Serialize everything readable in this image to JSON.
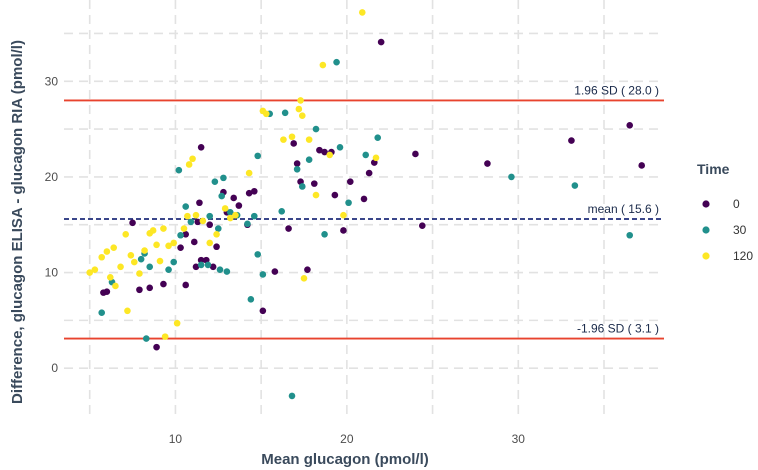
{
  "chart_data": {
    "type": "scatter",
    "title": "",
    "xlabel": "Mean glucagon (pmol/l)",
    "ylabel": "Difference, glucagon ELISA - glucagon RIA (pmol/l)",
    "xlim": [
      3.5,
      38.5
    ],
    "ylim": [
      -5,
      38.5
    ],
    "x_ticks": [
      10,
      20,
      30
    ],
    "y_ticks": [
      0,
      10,
      20,
      30
    ],
    "grid": "dashed",
    "legend": {
      "title": "Time",
      "position": "right"
    },
    "colors": {
      "0": "#440154",
      "30": "#21908C",
      "120": "#FDE725",
      "limit_line": "#E8432E",
      "mean_line": "#1F2D7A",
      "grid": "#e2e2e2"
    },
    "reference_lines": [
      {
        "label": "1.96 SD ( 28.0 )",
        "y": 28.0,
        "style": "solid",
        "color": "#E8432E"
      },
      {
        "label": "mean ( 15.6 )",
        "y": 15.6,
        "style": "dashed",
        "color": "#1F2D7A"
      },
      {
        "label": "-1.96 SD ( 3.1 )",
        "y": 3.1,
        "style": "solid",
        "color": "#E8432E"
      }
    ],
    "series": [
      {
        "name": "0",
        "color": "#440154",
        "points": [
          [
            5.8,
            7.9
          ],
          [
            6.0,
            8.0
          ],
          [
            7.5,
            15.2
          ],
          [
            7.9,
            8.2
          ],
          [
            8.5,
            8.4
          ],
          [
            8.9,
            2.2
          ],
          [
            9.3,
            8.8
          ],
          [
            10.3,
            12.6
          ],
          [
            10.6,
            8.7
          ],
          [
            10.6,
            14.0
          ],
          [
            11.1,
            13.2
          ],
          [
            11.2,
            10.6
          ],
          [
            11.3,
            15.3
          ],
          [
            11.4,
            17.3
          ],
          [
            11.5,
            23.1
          ],
          [
            11.5,
            11.3
          ],
          [
            11.8,
            11.3
          ],
          [
            12.0,
            15.0
          ],
          [
            12.2,
            10.6
          ],
          [
            12.4,
            12.7
          ],
          [
            12.8,
            18.4
          ],
          [
            13.0,
            16.3
          ],
          [
            13.4,
            17.8
          ],
          [
            13.7,
            17.0
          ],
          [
            14.2,
            15.0
          ],
          [
            14.3,
            18.3
          ],
          [
            14.6,
            18.5
          ],
          [
            15.1,
            6.0
          ],
          [
            15.8,
            10.1
          ],
          [
            16.6,
            14.6
          ],
          [
            16.9,
            23.5
          ],
          [
            17.1,
            21.4
          ],
          [
            17.3,
            19.5
          ],
          [
            17.7,
            10.3
          ],
          [
            18.1,
            19.3
          ],
          [
            18.4,
            22.8
          ],
          [
            18.7,
            22.6
          ],
          [
            19.1,
            22.6
          ],
          [
            19.3,
            18.1
          ],
          [
            19.8,
            14.4
          ],
          [
            20.2,
            19.5
          ],
          [
            21.0,
            17.7
          ],
          [
            21.3,
            20.4
          ],
          [
            21.6,
            21.5
          ],
          [
            22.0,
            34.1
          ],
          [
            24.0,
            22.4
          ],
          [
            24.4,
            14.9
          ],
          [
            28.2,
            21.4
          ],
          [
            33.1,
            23.8
          ],
          [
            36.5,
            25.4
          ],
          [
            37.2,
            21.2
          ]
        ]
      },
      {
        "name": "30",
        "color": "#21908C",
        "points": [
          [
            5.7,
            5.8
          ],
          [
            6.3,
            9.0
          ],
          [
            8.0,
            11.4
          ],
          [
            8.2,
            12.0
          ],
          [
            8.3,
            3.1
          ],
          [
            8.5,
            10.6
          ],
          [
            9.6,
            10.3
          ],
          [
            9.9,
            11.1
          ],
          [
            10.2,
            20.7
          ],
          [
            10.3,
            13.9
          ],
          [
            10.6,
            16.9
          ],
          [
            10.9,
            15.3
          ],
          [
            11.5,
            10.8
          ],
          [
            11.9,
            10.8
          ],
          [
            12.0,
            15.9
          ],
          [
            12.3,
            19.5
          ],
          [
            12.5,
            14.6
          ],
          [
            12.6,
            10.3
          ],
          [
            12.7,
            18.0
          ],
          [
            12.8,
            19.9
          ],
          [
            13.0,
            10.1
          ],
          [
            13.2,
            16.3
          ],
          [
            13.6,
            16.0
          ],
          [
            14.2,
            15.1
          ],
          [
            14.4,
            7.2
          ],
          [
            14.6,
            15.9
          ],
          [
            14.8,
            11.9
          ],
          [
            14.8,
            22.2
          ],
          [
            15.1,
            9.8
          ],
          [
            15.5,
            26.6
          ],
          [
            16.2,
            16.4
          ],
          [
            16.4,
            26.7
          ],
          [
            16.8,
            -2.9
          ],
          [
            17.1,
            20.8
          ],
          [
            17.4,
            19.0
          ],
          [
            17.8,
            21.8
          ],
          [
            18.2,
            25.0
          ],
          [
            18.7,
            14.0
          ],
          [
            19.4,
            32.0
          ],
          [
            19.6,
            23.1
          ],
          [
            20.1,
            17.3
          ],
          [
            21.1,
            22.3
          ],
          [
            21.8,
            24.1
          ],
          [
            29.6,
            20.0
          ],
          [
            33.3,
            19.1
          ],
          [
            36.5,
            13.9
          ]
        ]
      },
      {
        "name": "120",
        "color": "#FDE725",
        "points": [
          [
            5.0,
            10.0
          ],
          [
            5.3,
            10.3
          ],
          [
            5.7,
            11.6
          ],
          [
            6.0,
            12.2
          ],
          [
            6.2,
            9.5
          ],
          [
            6.4,
            12.6
          ],
          [
            6.5,
            8.6
          ],
          [
            6.8,
            10.6
          ],
          [
            7.1,
            14.0
          ],
          [
            7.2,
            6.0
          ],
          [
            7.4,
            11.8
          ],
          [
            7.6,
            11.1
          ],
          [
            7.9,
            9.9
          ],
          [
            8.2,
            12.3
          ],
          [
            8.5,
            14.1
          ],
          [
            8.7,
            14.4
          ],
          [
            8.9,
            12.9
          ],
          [
            9.1,
            11.2
          ],
          [
            9.3,
            14.6
          ],
          [
            9.4,
            3.3
          ],
          [
            9.6,
            12.8
          ],
          [
            9.9,
            13.1
          ],
          [
            10.1,
            4.7
          ],
          [
            10.5,
            14.6
          ],
          [
            10.7,
            15.9
          ],
          [
            10.8,
            21.3
          ],
          [
            11.0,
            21.9
          ],
          [
            11.2,
            16.0
          ],
          [
            11.6,
            15.4
          ],
          [
            12.0,
            13.1
          ],
          [
            12.4,
            14.0
          ],
          [
            12.9,
            16.7
          ],
          [
            13.2,
            15.7
          ],
          [
            13.5,
            16.0
          ],
          [
            14.3,
            20.4
          ],
          [
            15.1,
            26.9
          ],
          [
            15.3,
            26.6
          ],
          [
            16.3,
            23.9
          ],
          [
            16.8,
            24.2
          ],
          [
            17.2,
            27.1
          ],
          [
            17.3,
            28.0
          ],
          [
            17.4,
            26.4
          ],
          [
            17.5,
            9.4
          ],
          [
            17.8,
            23.9
          ],
          [
            18.2,
            18.1
          ],
          [
            18.6,
            31.7
          ],
          [
            19.0,
            22.3
          ],
          [
            19.8,
            16.0
          ],
          [
            20.9,
            37.2
          ],
          [
            21.7,
            22.0
          ]
        ]
      }
    ]
  }
}
